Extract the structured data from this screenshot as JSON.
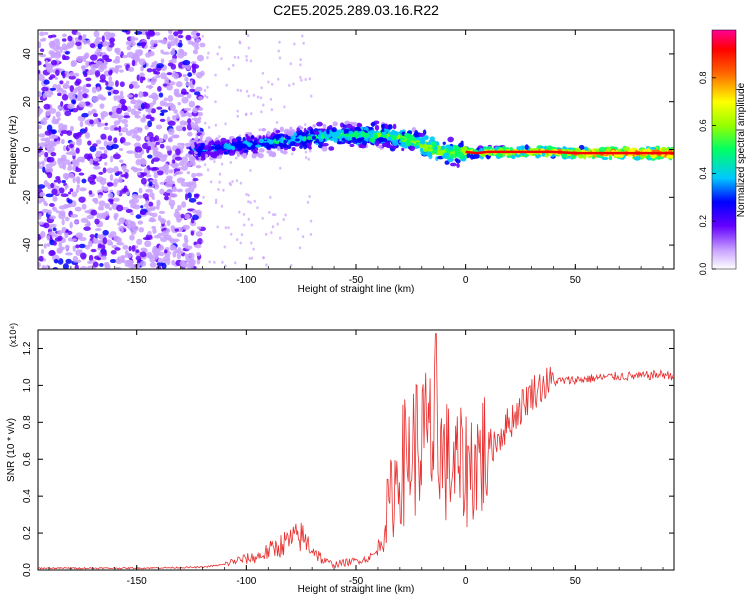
{
  "figure_title": "C2E5.2025.289.03.16.R22",
  "colors": {
    "axis": "#000000",
    "line": "#e83030",
    "background": "#ffffff"
  },
  "chart_data": [
    {
      "type": "heatmap",
      "title": "C2E5.2025.289.03.16.R22",
      "xlabel": "Height of straight line (km)",
      "ylabel": "Frequency (Hz)",
      "xlim": [
        -195,
        95
      ],
      "ylim": [
        -50,
        50
      ],
      "xticks": [
        -150,
        -100,
        -50,
        0,
        50
      ],
      "yticks": [
        -40,
        -20,
        0,
        20,
        40
      ],
      "tick_labels_x": [
        "-150",
        "-100",
        "-50",
        "0",
        "50"
      ],
      "tick_labels_y": [
        "-40",
        "-20",
        "0",
        "20",
        "40"
      ],
      "ridge": {
        "x": [
          -125,
          -110,
          -100,
          -90,
          -80,
          -70,
          -60,
          -50,
          -40,
          -30,
          -25,
          -20,
          -15,
          -10,
          -5,
          0,
          5,
          10,
          20,
          30,
          40,
          50,
          60,
          70,
          80,
          90,
          95
        ],
        "y": [
          0,
          1,
          2,
          3,
          4,
          5,
          6,
          6,
          6,
          5,
          4,
          2,
          0,
          -1,
          -1,
          -1,
          -1.5,
          -1,
          -1,
          -1,
          -1,
          -1.5,
          -1.5,
          -1.5,
          -1.5,
          -1.5,
          -1.5
        ]
      },
      "colorbar": {
        "label": "Normalized spectral amplitude",
        "range": [
          0,
          1
        ],
        "ticks": [
          0.0,
          0.2,
          0.4,
          0.6,
          0.8
        ],
        "tick_labels": [
          "0.0",
          "0.2",
          "0.4",
          "0.6",
          "0.8"
        ],
        "colors": [
          "#ffffff",
          "#c8a0ff",
          "#6400ff",
          "#0000ff",
          "#00c8ff",
          "#00ff64",
          "#96ff00",
          "#ffff00",
          "#ff6400",
          "#ff0000",
          "#ff0096"
        ]
      }
    },
    {
      "type": "line",
      "xlabel": "Height of straight line (km)",
      "ylabel": "SNR (10 * v/v)",
      "scale_label": "(x10⁴)",
      "xlim": [
        -195,
        95
      ],
      "ylim": [
        0,
        1.3
      ],
      "xticks": [
        -150,
        -100,
        -50,
        0,
        50
      ],
      "yticks": [
        0.0,
        0.2,
        0.4,
        0.6,
        0.8,
        1.0,
        1.2
      ],
      "tick_labels_x": [
        "-150",
        "-100",
        "-50",
        "0",
        "50"
      ],
      "tick_labels_y": [
        "0.0",
        "0.2",
        "0.4",
        "0.6",
        "0.8",
        "1.0",
        "1.2"
      ],
      "series": [
        {
          "name": "SNR",
          "x": [
            -195,
            -150,
            -120,
            -110,
            -105,
            -100,
            -95,
            -90,
            -85,
            -80,
            -75,
            -70,
            -65,
            -60,
            -55,
            -50,
            -45,
            -40,
            -35,
            -30,
            -25,
            -20,
            -15,
            -10,
            -5,
            0,
            5,
            10,
            15,
            20,
            25,
            30,
            35,
            40,
            50,
            60,
            70,
            80,
            90,
            95
          ],
          "values": [
            0.01,
            0.01,
            0.015,
            0.03,
            0.05,
            0.06,
            0.07,
            0.1,
            0.13,
            0.16,
            0.18,
            0.12,
            0.05,
            0.03,
            0.04,
            0.05,
            0.06,
            0.1,
            0.35,
            0.55,
            0.65,
            0.7,
            0.7,
            0.6,
            0.55,
            0.55,
            0.6,
            0.65,
            0.72,
            0.8,
            0.88,
            0.96,
            1.0,
            1.02,
            1.03,
            1.04,
            1.05,
            1.05,
            1.06,
            1.05
          ]
        }
      ]
    }
  ]
}
